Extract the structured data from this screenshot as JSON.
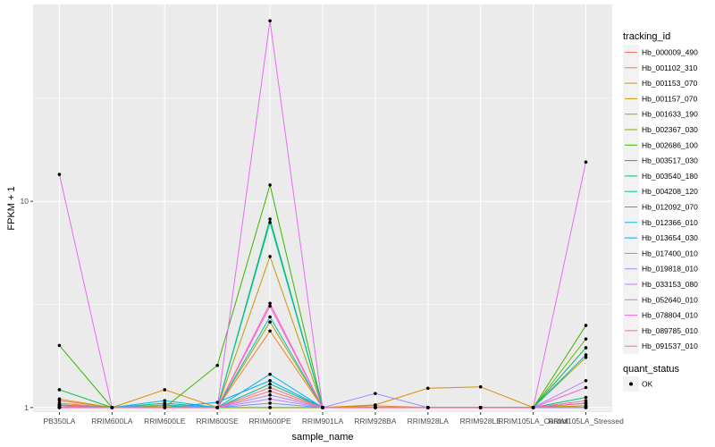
{
  "chart_data": {
    "type": "line",
    "xlabel": "sample_name",
    "ylabel": "FPKM + 1",
    "y_scale": "log10",
    "ylim": [
      0.95,
      90
    ],
    "y_ticks": [
      1,
      10
    ],
    "y_tick_labels": [
      "1",
      "10"
    ],
    "grid": true,
    "legend_position": "right",
    "categories": [
      "PB350LA",
      "RRIM600LA",
      "RRIM600LE",
      "RRIM600SE",
      "RRIM600PE",
      "RRIM901LA",
      "RRIM928BA",
      "RRIM928LA",
      "RRIM928LE",
      "RRIM105LA_Control",
      "RRIM105LA_Stressed"
    ],
    "series": [
      {
        "name": "Hb_000009_490",
        "color": "#F8766D",
        "values": [
          1.08,
          1.0,
          1.02,
          1.0,
          1.2,
          1.0,
          1.0,
          1.0,
          1.0,
          1.0,
          1.05
        ]
      },
      {
        "name": "Hb_001102_310",
        "color": "#EA8331",
        "values": [
          1.05,
          1.0,
          1.0,
          1.0,
          2.35,
          1.0,
          1.02,
          1.0,
          1.0,
          1.0,
          1.02
        ]
      },
      {
        "name": "Hb_001153_070",
        "color": "#D89000",
        "values": [
          1.1,
          1.0,
          1.22,
          1.0,
          1.0,
          1.0,
          1.03,
          1.24,
          1.26,
          1.0,
          1.75
        ]
      },
      {
        "name": "Hb_001157_070",
        "color": "#C09B00",
        "values": [
          1.03,
          1.0,
          1.0,
          1.0,
          5.4,
          1.0,
          1.0,
          1.0,
          1.0,
          1.0,
          1.02
        ]
      },
      {
        "name": "Hb_001633_190",
        "color": "#A3A500",
        "values": [
          1.02,
          1.0,
          1.02,
          1.0,
          2.6,
          1.0,
          1.0,
          1.0,
          1.0,
          1.0,
          1.0
        ]
      },
      {
        "name": "Hb_002367_030",
        "color": "#7CAE00",
        "values": [
          1.0,
          1.0,
          1.0,
          1.0,
          1.0,
          1.0,
          1.0,
          1.0,
          1.0,
          1.0,
          2.15
        ]
      },
      {
        "name": "Hb_002686_100",
        "color": "#39B600",
        "values": [
          2.0,
          1.0,
          1.0,
          1.6,
          12.0,
          1.0,
          1.0,
          1.0,
          1.0,
          1.0,
          2.5
        ]
      },
      {
        "name": "Hb_003517_030",
        "color": "#00BB4E",
        "values": [
          1.22,
          1.0,
          1.0,
          1.0,
          8.2,
          1.0,
          1.0,
          1.0,
          1.0,
          1.0,
          1.95
        ]
      },
      {
        "name": "Hb_003540_180",
        "color": "#00BF7D",
        "values": [
          1.02,
          1.0,
          1.05,
          1.0,
          1.3,
          1.0,
          1.0,
          1.0,
          1.0,
          1.0,
          1.12
        ]
      },
      {
        "name": "Hb_004208_120",
        "color": "#00C1A3",
        "values": [
          1.0,
          1.0,
          1.0,
          1.0,
          7.9,
          1.0,
          1.0,
          1.0,
          1.0,
          1.0,
          1.05
        ]
      },
      {
        "name": "Hb_012092_070",
        "color": "#00BFC4",
        "values": [
          1.0,
          1.0,
          1.0,
          1.0,
          2.75,
          1.0,
          1.0,
          1.0,
          1.0,
          1.0,
          1.8
        ]
      },
      {
        "name": "Hb_012366_010",
        "color": "#00B8E5",
        "values": [
          1.03,
          1.0,
          1.08,
          1.0,
          1.45,
          1.0,
          1.0,
          1.0,
          1.0,
          1.0,
          1.0
        ]
      },
      {
        "name": "Hb_013654_030",
        "color": "#00ABFD",
        "values": [
          1.0,
          1.0,
          1.0,
          1.06,
          1.35,
          1.0,
          1.0,
          1.0,
          1.0,
          1.0,
          1.0
        ]
      },
      {
        "name": "Hb_017400_010",
        "color": "#619CFF",
        "values": [
          1.0,
          1.0,
          1.03,
          1.0,
          1.05,
          1.0,
          1.0,
          1.0,
          1.0,
          1.0,
          1.0
        ]
      },
      {
        "name": "Hb_019818_010",
        "color": "#A58AFF",
        "values": [
          1.0,
          1.0,
          1.0,
          1.0,
          1.15,
          1.0,
          1.17,
          1.0,
          1.0,
          1.0,
          1.0
        ]
      },
      {
        "name": "Hb_033153_080",
        "color": "#C77CFF",
        "values": [
          1.0,
          1.0,
          1.0,
          1.0,
          1.1,
          1.0,
          1.0,
          1.0,
          1.0,
          1.0,
          1.35
        ]
      },
      {
        "name": "Hb_052640_010",
        "color": "#E76BF3",
        "values": [
          13.5,
          1.0,
          1.0,
          1.0,
          75.0,
          1.0,
          1.0,
          1.0,
          1.0,
          1.0,
          15.5
        ]
      },
      {
        "name": "Hb_078804_010",
        "color": "#FA62DB",
        "values": [
          1.0,
          1.0,
          1.0,
          1.0,
          3.2,
          1.0,
          1.0,
          1.0,
          1.0,
          1.0,
          1.25
        ]
      },
      {
        "name": "Hb_089785_010",
        "color": "#FF62BC",
        "values": [
          1.0,
          1.0,
          1.0,
          1.0,
          3.1,
          1.0,
          1.0,
          1.0,
          1.0,
          1.0,
          1.05
        ]
      },
      {
        "name": "Hb_091537_010",
        "color": "#FF6C91",
        "values": [
          1.02,
          1.0,
          1.0,
          1.0,
          1.25,
          1.0,
          1.0,
          1.0,
          1.0,
          1.0,
          1.08
        ]
      }
    ],
    "shape_legend": {
      "title": "quant_status",
      "entries": [
        "OK"
      ]
    },
    "color_legend_title": "tracking_id"
  }
}
